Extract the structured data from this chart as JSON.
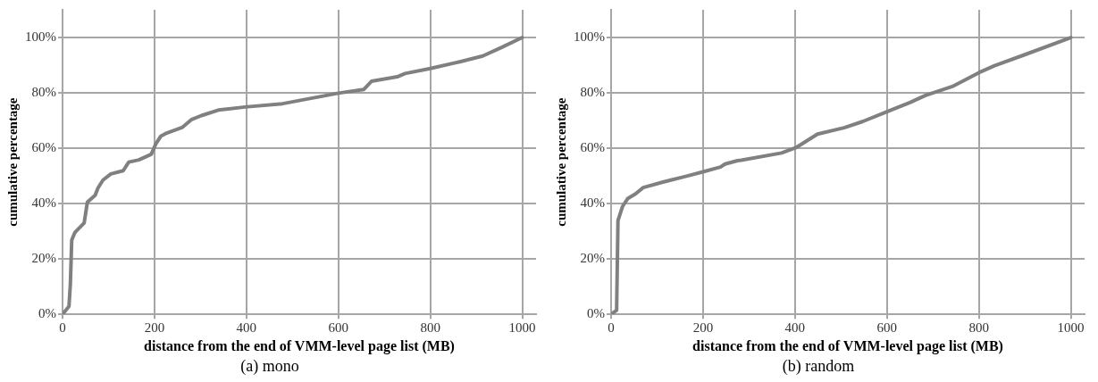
{
  "chart_data": [
    {
      "type": "line",
      "title": "(a) mono",
      "xlabel": "distance from the end of VMM-level page list (MB)",
      "ylabel": "cumulative percentage",
      "xlim": [
        0,
        1030
      ],
      "xticks": [
        0,
        200,
        400,
        600,
        800,
        1000
      ],
      "ylim": [
        0,
        110
      ],
      "yticks": [
        {
          "value": 0,
          "label": "0%"
        },
        {
          "value": 20,
          "label": "20%"
        },
        {
          "value": 40,
          "label": "40%"
        },
        {
          "value": 60,
          "label": "60%"
        },
        {
          "value": 80,
          "label": "80%"
        },
        {
          "value": 100,
          "label": "100%"
        }
      ],
      "grid": true,
      "line_style": "solid",
      "series": [
        {
          "color": "#808080",
          "x": [
            0,
            14,
            17,
            20,
            27,
            47,
            54,
            71,
            77,
            88,
            105,
            132,
            144,
            166,
            193,
            203,
            214,
            224,
            261,
            281,
            302,
            339,
            397,
            479,
            600,
            655,
            672,
            728,
            745,
            800,
            866,
            914,
            955,
            1000
          ],
          "values": [
            0,
            2.9,
            10.8,
            26.8,
            29.6,
            33,
            40.5,
            43,
            45.6,
            48.5,
            50.7,
            51.9,
            55,
            55.8,
            57.8,
            61.6,
            64.4,
            65.3,
            67.6,
            70.4,
            71.8,
            73.8,
            74.9,
            76.1,
            79.9,
            81.2,
            84.2,
            85.8,
            87,
            88.8,
            91.3,
            93.3,
            96.4,
            100
          ]
        }
      ]
    },
    {
      "type": "line",
      "title": "(b) random",
      "xlabel": "distance from the end of VMM-level page list (MB)",
      "ylabel": "cumulative percentage",
      "xlim": [
        0,
        1030
      ],
      "xticks": [
        0,
        200,
        400,
        600,
        800,
        1000
      ],
      "ylim": [
        0,
        110
      ],
      "yticks": [
        {
          "value": 0,
          "label": "0%"
        },
        {
          "value": 20,
          "label": "20%"
        },
        {
          "value": 40,
          "label": "40%"
        },
        {
          "value": 60,
          "label": "60%"
        },
        {
          "value": 80,
          "label": "80%"
        },
        {
          "value": 100,
          "label": "100%"
        }
      ],
      "grid": true,
      "line_style": "solid",
      "series": [
        {
          "color": "#808080",
          "x": [
            0,
            12,
            15,
            25,
            36,
            53,
            70,
            111,
            132,
            166,
            200,
            238,
            248,
            275,
            283,
            371,
            402,
            449,
            507,
            548,
            599,
            650,
            684,
            745,
            800,
            834,
            900,
            1000
          ],
          "values": [
            0,
            1.5,
            33.9,
            39,
            41.8,
            43.5,
            45.8,
            47.7,
            48.6,
            50,
            51.5,
            53.2,
            54.3,
            55.5,
            55.7,
            58.3,
            60.2,
            65.1,
            67.4,
            69.7,
            73.1,
            76.5,
            79.1,
            82.5,
            87.3,
            89.8,
            93.8,
            100
          ]
        }
      ]
    }
  ]
}
